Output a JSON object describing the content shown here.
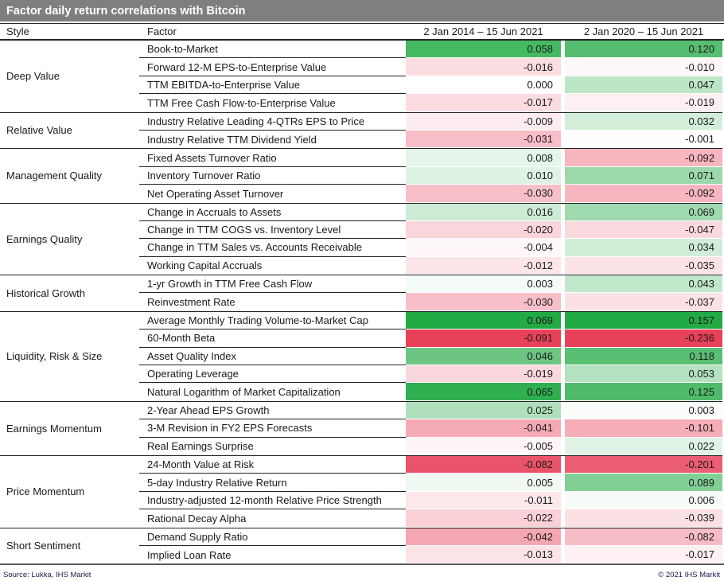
{
  "title": "Factor daily return correlations with Bitcoin",
  "columns": {
    "style": "Style",
    "factor": "Factor",
    "period1": "2 Jan 2014 – 15 Jun 2021",
    "period2": "2 Jan 2020 – 15 Jun 2021"
  },
  "footer": {
    "source": "Source: Lukka, IHS Markit",
    "copyright": "© 2021 IHS Markit"
  },
  "colors": {
    "title_bar_bg": "#7F7F7F",
    "title_text": "#FFFFFF",
    "positive_max": "#22AA44",
    "negative_max": "#E8415A",
    "neutral": "#FFFFFF",
    "cell_text": "#1A1A1A",
    "footer_text": "#1A1A4A"
  },
  "chart_data": {
    "type": "heatmap",
    "title": "Factor daily return correlations with Bitcoin",
    "value_columns": [
      "2 Jan 2014 – 15 Jun 2021",
      "2 Jan 2020 – 15 Jun 2021"
    ],
    "color_scale": "per-column 3-color scale: white at 0, full green at column max positive, full red at column max negative",
    "groups": [
      {
        "style": "Deep Value",
        "rows": [
          {
            "factor": "Book-to-Market",
            "values": [
              0.058,
              0.12
            ]
          },
          {
            "factor": "Forward 12-M EPS-to-Enterprise Value",
            "values": [
              -0.016,
              -0.01
            ]
          },
          {
            "factor": "TTM EBITDA-to-Enterprise Value",
            "values": [
              0.0,
              0.047
            ]
          },
          {
            "factor": "TTM Free Cash Flow-to-Enterprise Value",
            "values": [
              -0.017,
              -0.019
            ]
          }
        ]
      },
      {
        "style": "Relative Value",
        "rows": [
          {
            "factor": "Industry Relative Leading 4-QTRs EPS to Price",
            "values": [
              -0.009,
              0.032
            ]
          },
          {
            "factor": "Industry Relative TTM Dividend Yield",
            "values": [
              -0.031,
              -0.001
            ]
          }
        ]
      },
      {
        "style": "Management Quality",
        "rows": [
          {
            "factor": "Fixed Assets Turnover Ratio",
            "values": [
              0.008,
              -0.092
            ]
          },
          {
            "factor": "Inventory Turnover Ratio",
            "values": [
              0.01,
              0.071
            ]
          },
          {
            "factor": "Net Operating Asset Turnover",
            "values": [
              -0.03,
              -0.092
            ]
          }
        ]
      },
      {
        "style": "Earnings Quality",
        "rows": [
          {
            "factor": "Change in Accruals to Assets",
            "values": [
              0.016,
              0.069
            ]
          },
          {
            "factor": "Change in TTM COGS vs. Inventory Level",
            "values": [
              -0.02,
              -0.047
            ]
          },
          {
            "factor": "Change in TTM Sales vs. Accounts Receivable",
            "values": [
              -0.004,
              0.034
            ]
          },
          {
            "factor": "Working Capital Accruals",
            "values": [
              -0.012,
              -0.035
            ]
          }
        ]
      },
      {
        "style": "Historical Growth",
        "rows": [
          {
            "factor": "1-yr Growth in TTM Free Cash Flow",
            "values": [
              0.003,
              0.043
            ]
          },
          {
            "factor": "Reinvestment Rate",
            "values": [
              -0.03,
              -0.037
            ]
          }
        ]
      },
      {
        "style": "Liquidity, Risk & Size",
        "rows": [
          {
            "factor": "Average Monthly Trading Volume-to-Market Cap",
            "values": [
              0.069,
              0.157
            ]
          },
          {
            "factor": "60-Month Beta",
            "values": [
              -0.091,
              -0.236
            ]
          },
          {
            "factor": "Asset Quality Index",
            "values": [
              0.046,
              0.118
            ]
          },
          {
            "factor": "Operating Leverage",
            "values": [
              -0.019,
              0.053
            ]
          },
          {
            "factor": "Natural Logarithm of Market Capitalization",
            "values": [
              0.065,
              0.125
            ]
          }
        ]
      },
      {
        "style": "Earnings Momentum",
        "rows": [
          {
            "factor": "2-Year Ahead EPS Growth",
            "values": [
              0.025,
              0.003
            ]
          },
          {
            "factor": "3-M Revision in FY2 EPS Forecasts",
            "values": [
              -0.041,
              -0.101
            ]
          },
          {
            "factor": "Real Earnings Surprise",
            "values": [
              -0.005,
              0.022
            ]
          }
        ]
      },
      {
        "style": "Price Momentum",
        "rows": [
          {
            "factor": "24-Month Value at Risk",
            "values": [
              -0.082,
              -0.201
            ]
          },
          {
            "factor": "5-day Industry Relative Return",
            "values": [
              0.005,
              0.089
            ]
          },
          {
            "factor": "Industry-adjusted 12-month Relative Price Strength",
            "values": [
              -0.011,
              0.006
            ]
          },
          {
            "factor": "Rational Decay Alpha",
            "values": [
              -0.022,
              -0.039
            ]
          }
        ]
      },
      {
        "style": "Short Sentiment",
        "rows": [
          {
            "factor": "Demand Supply Ratio",
            "values": [
              -0.042,
              -0.082
            ]
          },
          {
            "factor": "Implied Loan Rate",
            "values": [
              -0.013,
              -0.017
            ]
          }
        ]
      }
    ]
  }
}
